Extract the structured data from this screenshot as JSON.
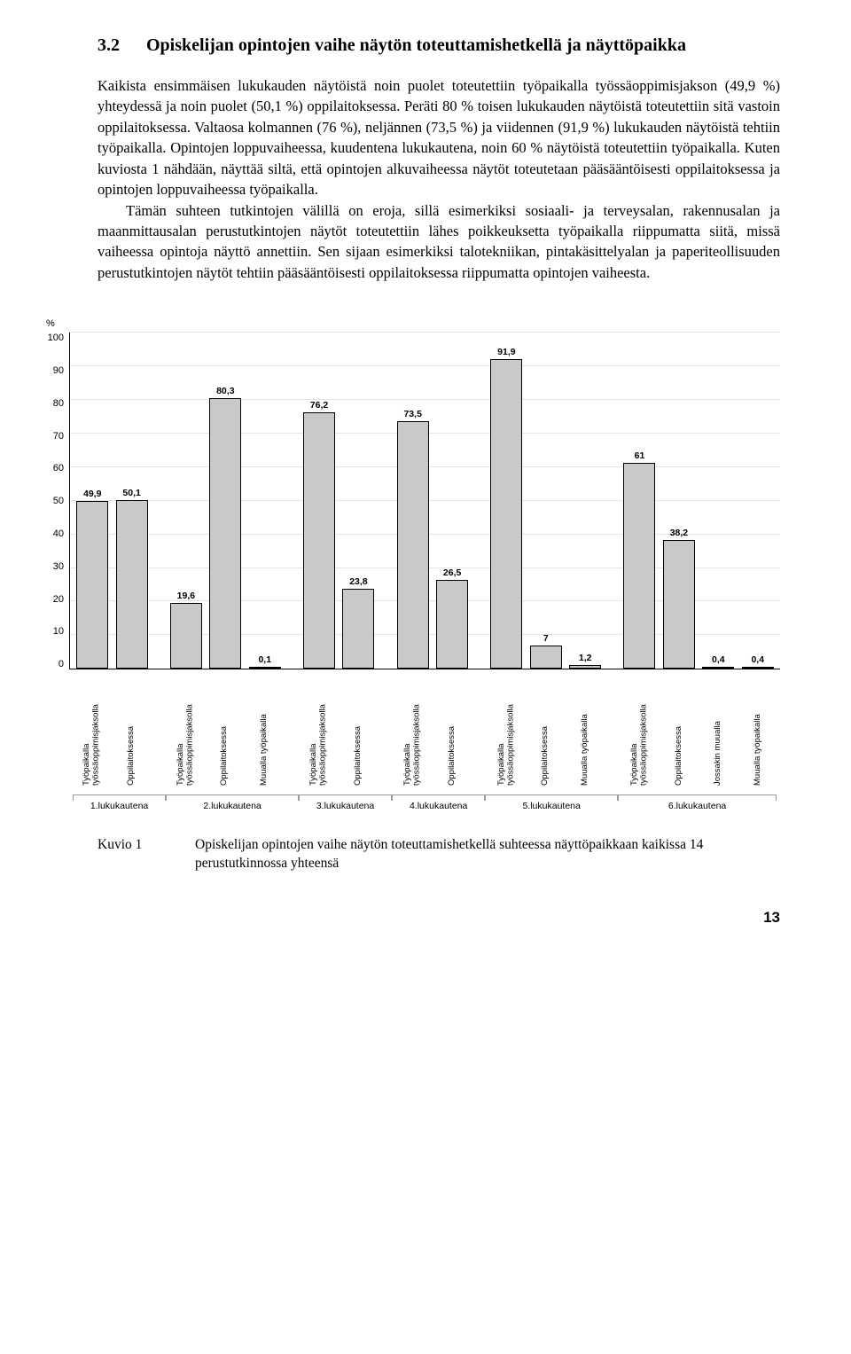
{
  "heading": {
    "number": "3.2",
    "title": "Opiskelijan opintojen vaihe näytön toteuttamishetkellä ja näyttöpaikka"
  },
  "paragraphs": [
    "Kaikista ensimmäisen lukukauden näytöistä noin puolet toteutettiin työpaikalla työssäoppimisjakson (49,9 %) yhteydessä ja noin puolet (50,1 %) oppilaitoksessa. Peräti 80 % toisen lukukauden näytöistä toteutettiin sitä vastoin oppilaitoksessa. Valtaosa kolmannen (76 %), neljännen (73,5 %) ja viidennen (91,9 %) lukukauden näytöistä tehtiin työpaikalla. Opintojen loppuvaiheessa, kuudentena lukukautena, noin 60 % näytöistä toteutettiin työpaikalla. Kuten kuviosta 1 nähdään, näyttää siltä, että opintojen alkuvaiheessa näytöt toteutetaan pääsääntöisesti oppilaitoksessa ja opintojen loppuvaiheessa työpaikalla.",
    "Tämän suhteen tutkintojen välillä on eroja, sillä esimerkiksi sosiaali- ja terveysalan, rakennusalan ja maanmittausalan perustutkintojen näytöt toteutettiin lähes poikkeuksetta työpaikalla riippumatta siitä, missä vaiheessa opintoja näyttö annettiin. Sen sijaan esimerkiksi talotekniikan, pintakäsittelyalan ja paperiteollisuuden perustutkintojen näytöt tehtiin pääsääntöisesti oppilaitoksessa riippumatta opintojen vaiheesta."
  ],
  "chart": {
    "type": "bar",
    "y_axis_label": "%",
    "ylim": [
      0,
      100
    ],
    "ytick_step": 10,
    "yticks": [
      "100",
      "90",
      "80",
      "70",
      "60",
      "50",
      "40",
      "30",
      "20",
      "10",
      "0"
    ],
    "bar_fill": "#c9c9c9",
    "bar_stroke": "#000000",
    "grid_color": "#e5e5e5",
    "background_color": "#ffffff",
    "value_fontsize": 10.5,
    "axis_fontsize": 11,
    "xlabel_fontsize": 9.5,
    "group_fontsize": 10.5,
    "bars": [
      {
        "label": "Työpaikalla\ntyössäoppimisjaksolla",
        "value": 49.9,
        "display": "49,9"
      },
      {
        "label": "Oppilaitoksessa",
        "value": 50.1,
        "display": "50,1"
      },
      {
        "spacer": true
      },
      {
        "label": "Työpaikalla\ntyössäoppimisjaksolla",
        "value": 19.6,
        "display": "19,6"
      },
      {
        "label": "Oppilaitoksessa",
        "value": 80.3,
        "display": "80,3"
      },
      {
        "label": "Muualla työpaikalla",
        "value": 0.1,
        "display": "0,1"
      },
      {
        "spacer": true
      },
      {
        "label": "Työpaikalla\ntyössäoppimisjaksolla",
        "value": 76.2,
        "display": "76,2"
      },
      {
        "label": "Oppilaitoksessa",
        "value": 23.8,
        "display": "23,8"
      },
      {
        "spacer": true
      },
      {
        "label": "Työpaikalla\ntyössäoppimisjaksolla",
        "value": 73.5,
        "display": "73,5"
      },
      {
        "label": "Oppilaitoksessa",
        "value": 26.5,
        "display": "26,5"
      },
      {
        "spacer": true
      },
      {
        "label": "Työpaikalla\ntyössäoppimisjaksolla",
        "value": 91.9,
        "display": "91,9"
      },
      {
        "label": "Oppilaitoksessa",
        "value": 7,
        "display": "7"
      },
      {
        "label": "Muualla työpaikalla",
        "value": 1.2,
        "display": "1,2"
      },
      {
        "spacer": true
      },
      {
        "label": "Työpaikalla\ntyössäoppimisjaksolla",
        "value": 61,
        "display": "61"
      },
      {
        "label": "Oppilaitoksessa",
        "value": 38.2,
        "display": "38,2"
      },
      {
        "label": "Jossakin muualla",
        "value": 0.4,
        "display": "0,4"
      },
      {
        "label": "Muualla työpaikalla",
        "value": 0.4,
        "display": "0,4"
      }
    ],
    "groups": [
      {
        "label": "1.lukukautena",
        "span": 2
      },
      {
        "label": "2.lukukautena",
        "span": 3
      },
      {
        "label": "3.lukukautena",
        "span": 2
      },
      {
        "label": "4.lukukautena",
        "span": 2
      },
      {
        "label": "5.lukukautena",
        "span": 3
      },
      {
        "label": "6.lukukautena",
        "span": 4
      }
    ]
  },
  "caption": {
    "label": "Kuvio 1",
    "text": "Opiskelijan opintojen vaihe näytön toteuttamishetkellä suhteessa näyttöpaikkaan kaikissa 14 perustutkinnossa yhteensä"
  },
  "page_number": "13"
}
